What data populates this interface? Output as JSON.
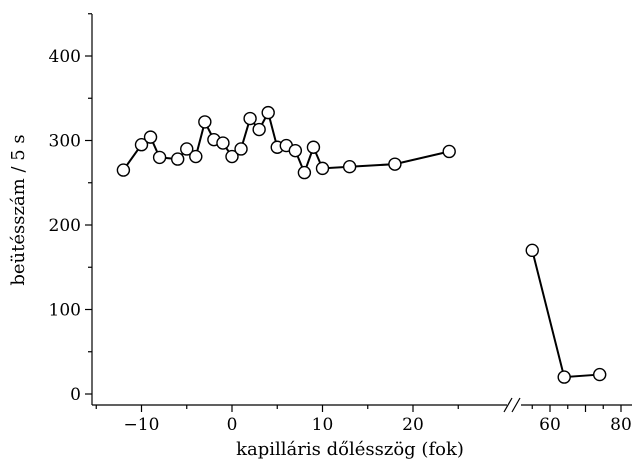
{
  "chart_data": {
    "type": "line",
    "xlabel": "kapilláris dőlésszög (fok)",
    "ylabel": "beütésszám / 5 s",
    "ylim": [
      0,
      450
    ],
    "grid": false,
    "axis_break": "between 25 and 55",
    "x_ticks_left": [
      -10,
      0,
      10,
      20
    ],
    "x_ticks_right": [
      60,
      80
    ],
    "y_ticks": [
      0,
      100,
      200,
      300,
      400
    ],
    "series": [
      {
        "segment": "left",
        "marker": "open-circle",
        "x": [
          -12,
          -10,
          -9,
          -8,
          -6,
          -5,
          -4,
          -3,
          -2,
          -1,
          0,
          1,
          2,
          3,
          4,
          5,
          6,
          7,
          8,
          9,
          10,
          13,
          18,
          24
        ],
        "y": [
          265,
          295,
          304,
          280,
          278,
          290,
          281,
          322,
          301,
          297,
          281,
          290,
          326,
          313,
          333,
          292,
          294,
          288,
          262,
          292,
          267,
          269,
          272,
          287
        ]
      },
      {
        "segment": "right",
        "marker": "open-circle",
        "x": [
          55,
          64,
          74
        ],
        "y": [
          170,
          20,
          23
        ]
      }
    ]
  }
}
